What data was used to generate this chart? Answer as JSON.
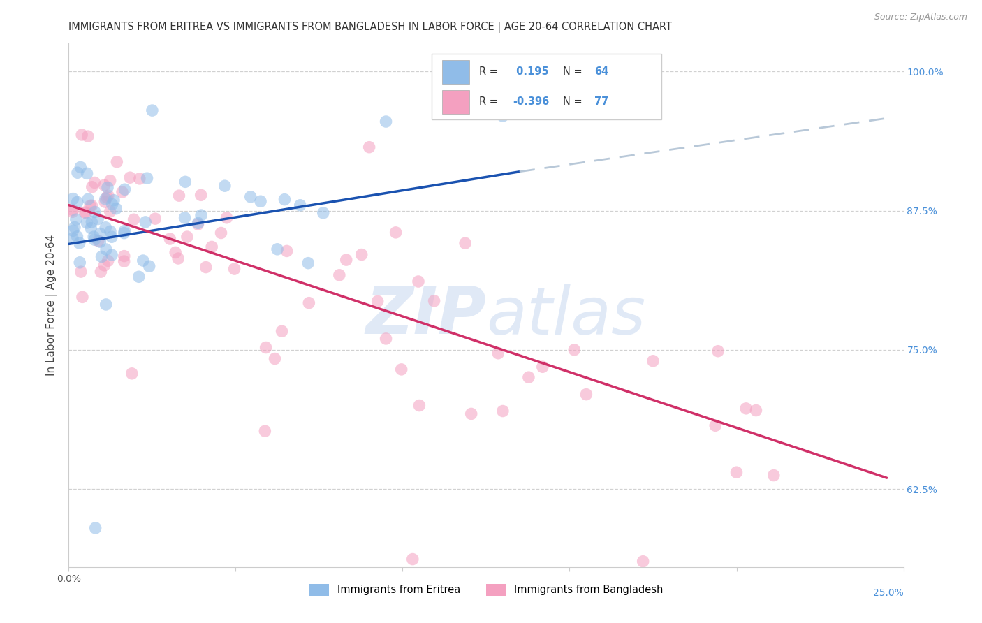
{
  "title": "IMMIGRANTS FROM ERITREA VS IMMIGRANTS FROM BANGLADESH IN LABOR FORCE | AGE 20-64 CORRELATION CHART",
  "source": "Source: ZipAtlas.com",
  "ylabel": "In Labor Force | Age 20-64",
  "xlim": [
    0.0,
    0.25
  ],
  "ylim": [
    0.555,
    1.025
  ],
  "xtick_positions": [
    0.0,
    0.05,
    0.1,
    0.15,
    0.2,
    0.25
  ],
  "ytick_positions": [
    0.625,
    0.75,
    0.875,
    1.0
  ],
  "ytick_labels": [
    "62.5%",
    "75.0%",
    "87.5%",
    "100.0%"
  ],
  "r_eritrea": 0.195,
  "n_eritrea": 64,
  "r_bangladesh": -0.396,
  "n_bangladesh": 77,
  "color_eritrea": "#90bce8",
  "color_bangladesh": "#f4a0c0",
  "trend_eritrea_color": "#1a52b0",
  "trend_bangladesh_color": "#d03068",
  "trend_dashed_color": "#b8c8d8",
  "watermark_zip": "ZIP",
  "watermark_atlas": "atlas",
  "watermark_color": "#c8d8f0",
  "background_color": "#ffffff",
  "grid_color": "#cccccc",
  "title_fontsize": 10.5,
  "ylabel_fontsize": 11,
  "tick_fontsize": 10,
  "legend_fontsize": 10.5,
  "source_fontsize": 9,
  "ytick_color": "#4a90d9",
  "legend_text_color": "#333333",
  "scatter_alpha": 0.55,
  "scatter_size": 160,
  "legend_label_eritrea": "Immigrants from Eritrea",
  "legend_label_bangladesh": "Immigrants from Bangladesh",
  "trend_eri_x0": 0.0,
  "trend_eri_y0": 0.845,
  "trend_eri_x1": 0.135,
  "trend_eri_y1": 0.91,
  "trend_eri_x2": 0.245,
  "trend_eri_y2": 0.958,
  "trend_ban_x0": 0.0,
  "trend_ban_y0": 0.88,
  "trend_ban_x1": 0.245,
  "trend_ban_y1": 0.635
}
